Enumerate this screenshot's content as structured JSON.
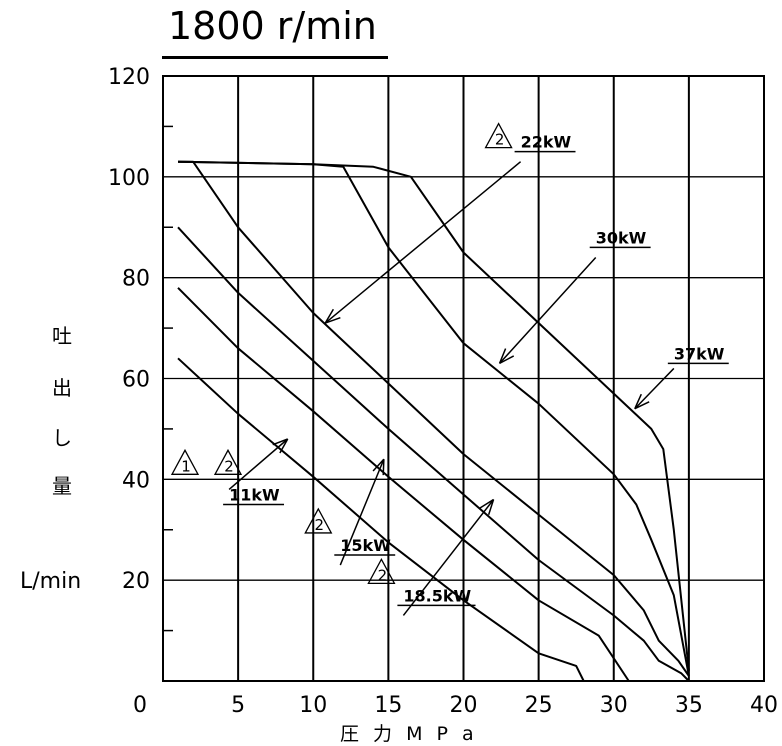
{
  "chart_data": {
    "type": "line",
    "title": "1800 r/min",
    "ylabel_chars": [
      "吐",
      "出",
      "し",
      "量"
    ],
    "yunit": "L/min",
    "xlabel": "圧 力 M P a",
    "xlim": [
      0,
      40
    ],
    "ylim": [
      0,
      120
    ],
    "xticks": [
      0,
      5,
      10,
      15,
      20,
      25,
      30,
      35,
      40
    ],
    "yticks": [
      20,
      40,
      60,
      80,
      100,
      120
    ],
    "grid": true,
    "series": [
      {
        "name": "11kW",
        "x": [
          1,
          5,
          10,
          15,
          20,
          25,
          27.5,
          28
        ],
        "y": [
          64,
          53,
          40.5,
          27.5,
          16,
          5.5,
          3,
          0
        ]
      },
      {
        "name": "15kW",
        "x": [
          1,
          5,
          10,
          15,
          20,
          25,
          29,
          31
        ],
        "y": [
          78,
          66,
          53.5,
          40.5,
          28,
          16,
          9,
          0
        ]
      },
      {
        "name": "18.5kW",
        "x": [
          1,
          5,
          10,
          15,
          20,
          25,
          30,
          32,
          33,
          34.5,
          35
        ],
        "y": [
          90,
          77,
          63.5,
          50,
          37,
          24,
          13,
          8,
          4,
          1.5,
          0
        ]
      },
      {
        "name": "22kW",
        "x": [
          1,
          2,
          5,
          10,
          15,
          20,
          25,
          30,
          32,
          33,
          34.3,
          35
        ],
        "y": [
          103,
          103,
          90,
          73,
          59,
          45,
          33,
          21,
          14,
          8,
          4,
          1
        ]
      },
      {
        "name": "30kW",
        "x": [
          1,
          10,
          12,
          15,
          20,
          25,
          30,
          31.5,
          32.5,
          34,
          35
        ],
        "y": [
          103,
          102.5,
          102,
          86,
          67,
          55,
          41,
          35,
          28,
          17,
          1
        ]
      },
      {
        "name": "37kW",
        "x": [
          1,
          10,
          14,
          16.5,
          20,
          25,
          30,
          32.5,
          33.3,
          34,
          35
        ],
        "y": [
          103,
          102.5,
          102,
          100,
          85,
          71,
          57,
          50,
          46,
          30,
          2
        ]
      }
    ],
    "annotations": [
      {
        "text": "22kW",
        "revision": "2",
        "x": 23.8,
        "y": 105
      },
      {
        "text": "30kW",
        "revision": "",
        "x": 28.8,
        "y": 86
      },
      {
        "text": "37kW",
        "revision": "",
        "x": 34.0,
        "y": 63
      },
      {
        "text": "11kW",
        "revision": "1 2",
        "x": 4.4,
        "y": 35
      },
      {
        "text": "15kW",
        "revision": "2",
        "x": 11.8,
        "y": 25
      },
      {
        "text": "18.5kW",
        "revision": "2",
        "x": 16.0,
        "y": 15
      }
    ]
  }
}
